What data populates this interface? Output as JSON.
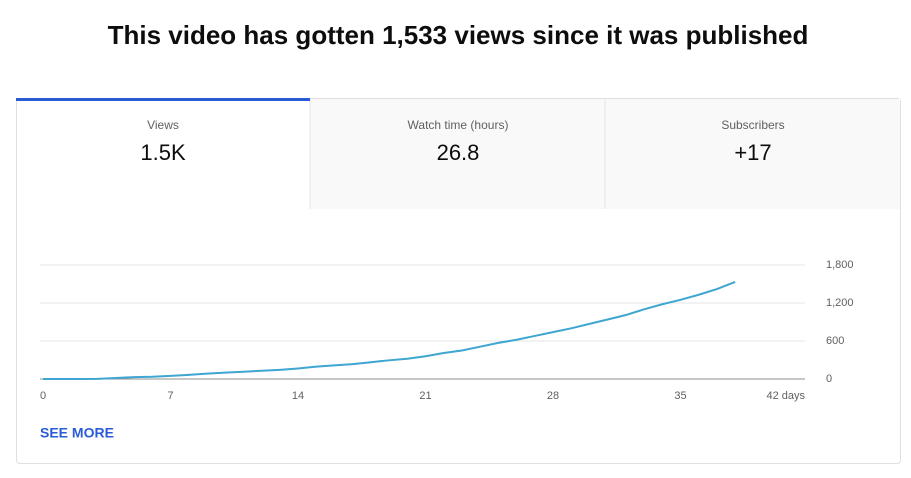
{
  "header": {
    "title": "This video has gotten 1,533 views since it was published"
  },
  "tabs": [
    {
      "label": "Views",
      "value": "1.5K"
    },
    {
      "label": "Watch time (hours)",
      "value": "26.8"
    },
    {
      "label": "Subscribers",
      "value": "+17"
    }
  ],
  "chart_data": {
    "type": "line",
    "x": [
      0,
      1,
      2,
      3,
      4,
      5,
      6,
      7,
      8,
      9,
      10,
      11,
      12,
      13,
      14,
      15,
      16,
      17,
      18,
      19,
      20,
      21,
      22,
      23,
      24,
      25,
      26,
      27,
      28,
      29,
      30,
      31,
      32,
      33,
      34,
      35,
      36,
      37,
      38
    ],
    "series": [
      {
        "color": "#3ea6d0",
        "values": [
          0,
          0,
          0,
          2,
          15,
          30,
          35,
          50,
          65,
          85,
          100,
          115,
          130,
          145,
          165,
          195,
          215,
          235,
          265,
          295,
          320,
          360,
          410,
          450,
          510,
          570,
          620,
          680,
          740,
          800,
          870,
          940,
          1010,
          1100,
          1180,
          1250,
          1330,
          1420,
          1533
        ]
      }
    ],
    "xlim": [
      0,
      42
    ],
    "xticks": [
      0,
      7,
      14,
      21,
      28,
      35,
      {
        "value": 42,
        "label": "42 days"
      }
    ],
    "ylim": [
      0,
      1800
    ],
    "yticks": [
      0,
      600,
      {
        "value": 1200,
        "label": "1,200"
      },
      {
        "value": 1800,
        "label": "1,800"
      }
    ],
    "grid": true
  },
  "footer": {
    "link": "SEE MORE"
  }
}
